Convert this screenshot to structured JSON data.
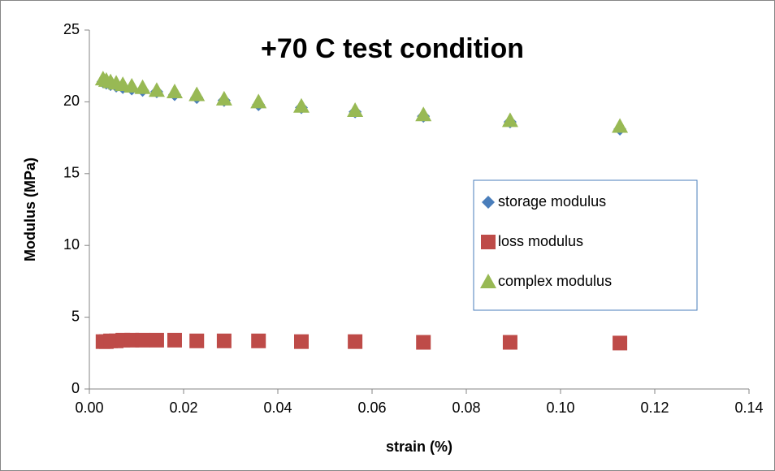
{
  "chart_data": {
    "type": "scatter",
    "title": "+70 C test condition",
    "x_label": "strain (%)",
    "y_label": "Modulus (MPa)",
    "x": [
      0.0029,
      0.0036,
      0.0045,
      0.0057,
      0.0071,
      0.009,
      0.0113,
      0.0143,
      0.0181,
      0.0228,
      0.0286,
      0.0359,
      0.045,
      0.0564,
      0.0709,
      0.0893,
      0.1126
    ],
    "series": [
      {
        "name": "storage modulus",
        "color": "#4a7ebb",
        "marker": "diamond",
        "values": [
          21.4,
          21.3,
          21.2,
          21.1,
          21.0,
          20.9,
          20.8,
          20.7,
          20.5,
          20.3,
          20.1,
          19.8,
          19.6,
          19.3,
          19.0,
          18.6,
          18.1
        ]
      },
      {
        "name": "loss modulus",
        "color": "#be4b48",
        "marker": "square",
        "values": [
          3.3,
          3.3,
          3.35,
          3.35,
          3.4,
          3.4,
          3.4,
          3.4,
          3.4,
          3.35,
          3.35,
          3.35,
          3.3,
          3.3,
          3.25,
          3.25,
          3.2
        ]
      },
      {
        "name": "complex modulus",
        "color": "#98b954",
        "marker": "triangle",
        "values": [
          21.6,
          21.5,
          21.4,
          21.3,
          21.2,
          21.1,
          21.0,
          20.8,
          20.7,
          20.5,
          20.2,
          20.0,
          19.7,
          19.4,
          19.1,
          18.7,
          18.3
        ]
      }
    ],
    "xlim": [
      0,
      0.14
    ],
    "xticks": [
      {
        "value": 0,
        "label": "0.00"
      },
      {
        "value": 0.02,
        "label": "0.02"
      },
      {
        "value": 0.04,
        "label": "0.04"
      },
      {
        "value": 0.06,
        "label": "0.06"
      },
      {
        "value": 0.08,
        "label": "0.08"
      },
      {
        "value": 0.1,
        "label": "0.10"
      },
      {
        "value": 0.12,
        "label": "0.12"
      },
      {
        "value": 0.14,
        "label": "0.14"
      }
    ],
    "ylim": [
      0,
      25
    ],
    "yticks": [
      0,
      5,
      10,
      15,
      20,
      25
    ],
    "grid": false,
    "legend": "right"
  }
}
